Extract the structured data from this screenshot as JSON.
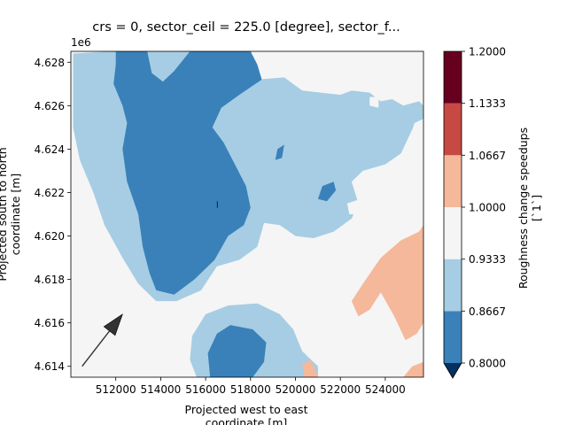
{
  "chart_data": {
    "type": "contourf",
    "title": "crs = 0, sector_ceil = 225.0 [degree], sector_f...",
    "xlabel_lines": [
      "Projected west to east",
      "coordinate [m]"
    ],
    "ylabel_lines": [
      "Projected south to north",
      "coordinate [m]"
    ],
    "y_offset_text": "1e6",
    "xlim": [
      510000,
      525700
    ],
    "ylim": [
      4613500,
      4628500
    ],
    "x_ticks": [
      512000,
      514000,
      516000,
      518000,
      520000,
      522000,
      524000
    ],
    "x_tick_labels": [
      "512000",
      "514000",
      "516000",
      "518000",
      "520000",
      "522000",
      "524000"
    ],
    "y_ticks": [
      4614000,
      4616000,
      4618000,
      4620000,
      4622000,
      4624000,
      4626000,
      4628000
    ],
    "y_tick_labels": [
      "4.614",
      "4.616",
      "4.618",
      "4.620",
      "4.622",
      "4.624",
      "4.626",
      "4.628"
    ],
    "colorbar": {
      "label_lines": [
        "Roughness change speedups",
        "[`1`]"
      ],
      "levels": [
        0.8,
        0.8667,
        0.9333,
        1.0,
        1.0667,
        1.1333,
        1.2
      ],
      "level_labels": [
        "0.8000",
        "0.8667",
        "0.9333",
        "1.0000",
        "1.0667",
        "1.1333",
        "1.2000"
      ],
      "colors": [
        "#3a81ba",
        "#a6cde3",
        "#f5f5f5",
        "#f5b89b",
        "#c64a43",
        "#67001f"
      ],
      "extend_color": "#053061",
      "extend": "min"
    },
    "background_level_color": "#f5f5f5",
    "regions": [
      {
        "name": "light-blue-main",
        "color": "#a6cde3",
        "points": [
          [
            510100,
            4628400
          ],
          [
            511800,
            4628500
          ],
          [
            517200,
            4628500
          ],
          [
            517500,
            4627500
          ],
          [
            518300,
            4627200
          ],
          [
            519500,
            4627300
          ],
          [
            520300,
            4626700
          ],
          [
            522000,
            4626500
          ],
          [
            522500,
            4626700
          ],
          [
            523300,
            4626600
          ],
          [
            523800,
            4626200
          ],
          [
            524300,
            4626300
          ],
          [
            524800,
            4626000
          ],
          [
            525500,
            4626200
          ],
          [
            525700,
            4626000
          ],
          [
            525700,
            4625300
          ],
          [
            525200,
            4624900
          ],
          [
            524700,
            4623800
          ],
          [
            524000,
            4623300
          ],
          [
            523000,
            4623000
          ],
          [
            522500,
            4622500
          ],
          [
            522800,
            4621500
          ],
          [
            522500,
            4620800
          ],
          [
            521700,
            4620200
          ],
          [
            520800,
            4619900
          ],
          [
            520000,
            4620000
          ],
          [
            519300,
            4620500
          ],
          [
            518600,
            4620600
          ],
          [
            518300,
            4619500
          ],
          [
            517500,
            4618900
          ],
          [
            516500,
            4618600
          ],
          [
            515800,
            4617500
          ],
          [
            514700,
            4617000
          ],
          [
            513800,
            4617000
          ],
          [
            513000,
            4617800
          ],
          [
            512300,
            4619000
          ],
          [
            511500,
            4620500
          ],
          [
            511000,
            4622000
          ],
          [
            510400,
            4623500
          ],
          [
            510100,
            4625000
          ]
        ]
      },
      {
        "name": "light-blue-south",
        "color": "#a6cde3",
        "points": [
          [
            515600,
            4613500
          ],
          [
            521000,
            4613500
          ],
          [
            521000,
            4614000
          ],
          [
            520300,
            4614700
          ],
          [
            519900,
            4615700
          ],
          [
            519300,
            4616400
          ],
          [
            518300,
            4616900
          ],
          [
            517000,
            4616800
          ],
          [
            516000,
            4616400
          ],
          [
            515400,
            4615400
          ],
          [
            515300,
            4614300
          ]
        ]
      },
      {
        "name": "dark-blue-main",
        "color": "#3a81ba",
        "points": [
          [
            512000,
            4628500
          ],
          [
            513400,
            4628500
          ],
          [
            513600,
            4627500
          ],
          [
            514100,
            4627100
          ],
          [
            514600,
            4627600
          ],
          [
            515300,
            4628500
          ],
          [
            518000,
            4628500
          ],
          [
            518300,
            4627900
          ],
          [
            518500,
            4627200
          ],
          [
            517500,
            4626500
          ],
          [
            516700,
            4625900
          ],
          [
            516300,
            4625000
          ],
          [
            516800,
            4624300
          ],
          [
            517300,
            4623300
          ],
          [
            517800,
            4622300
          ],
          [
            518000,
            4621300
          ],
          [
            517700,
            4620500
          ],
          [
            517000,
            4620000
          ],
          [
            516400,
            4618900
          ],
          [
            515500,
            4618000
          ],
          [
            514600,
            4617300
          ],
          [
            513800,
            4617500
          ],
          [
            513500,
            4618300
          ],
          [
            513200,
            4619500
          ],
          [
            513000,
            4621000
          ],
          [
            512500,
            4622500
          ],
          [
            512300,
            4624000
          ],
          [
            512500,
            4625200
          ],
          [
            512300,
            4626000
          ],
          [
            511900,
            4627000
          ],
          [
            512000,
            4627900
          ]
        ]
      },
      {
        "name": "dark-blue-south",
        "color": "#3a81ba",
        "points": [
          [
            516200,
            4613500
          ],
          [
            518100,
            4613500
          ],
          [
            518600,
            4614200
          ],
          [
            518700,
            4615100
          ],
          [
            518100,
            4615700
          ],
          [
            517100,
            4615900
          ],
          [
            516500,
            4615500
          ],
          [
            516100,
            4614600
          ]
        ]
      },
      {
        "name": "dark-blue-east",
        "color": "#3a81ba",
        "points": [
          [
            521200,
            4622300
          ],
          [
            521700,
            4622500
          ],
          [
            521800,
            4622100
          ],
          [
            521400,
            4621600
          ],
          [
            521000,
            4621700
          ]
        ]
      },
      {
        "name": "dark-blue-spot",
        "color": "#3a81ba",
        "points": [
          [
            519200,
            4624000
          ],
          [
            519500,
            4624200
          ],
          [
            519400,
            4623600
          ],
          [
            519100,
            4623500
          ]
        ]
      },
      {
        "name": "salmon-east",
        "color": "#f5b89b",
        "points": [
          [
            522500,
            4617000
          ],
          [
            523000,
            4617800
          ],
          [
            523800,
            4619000
          ],
          [
            524700,
            4619800
          ],
          [
            525500,
            4620200
          ],
          [
            525700,
            4620500
          ],
          [
            525700,
            4616000
          ],
          [
            525400,
            4615500
          ],
          [
            524900,
            4615200
          ],
          [
            524400,
            4616300
          ],
          [
            523800,
            4617400
          ],
          [
            523300,
            4616600
          ],
          [
            522800,
            4616300
          ]
        ]
      },
      {
        "name": "salmon-south",
        "color": "#f5b89b",
        "points": [
          [
            520400,
            4613500
          ],
          [
            521000,
            4613500
          ],
          [
            520700,
            4614300
          ],
          [
            520300,
            4614100
          ]
        ]
      },
      {
        "name": "salmon-corner",
        "color": "#f5b89b",
        "points": [
          [
            524800,
            4613500
          ],
          [
            525700,
            4613500
          ],
          [
            525700,
            4614200
          ],
          [
            525200,
            4614000
          ]
        ]
      },
      {
        "name": "white-island-se",
        "color": "#f5f5f5",
        "points": [
          [
            523300,
            4626000
          ],
          [
            523700,
            4625900
          ],
          [
            523700,
            4626400
          ],
          [
            523300,
            4626400
          ]
        ]
      },
      {
        "name": "white-island-ne",
        "color": "#f5f5f5",
        "points": [
          [
            520600,
            4628000
          ],
          [
            522500,
            4628300
          ],
          [
            523500,
            4628200
          ],
          [
            524500,
            4627600
          ],
          [
            525700,
            4627700
          ],
          [
            525700,
            4628500
          ],
          [
            520800,
            4628500
          ]
        ]
      },
      {
        "name": "white-island-east",
        "color": "#f5f5f5",
        "points": [
          [
            525100,
            4624600
          ],
          [
            525700,
            4624700
          ],
          [
            525700,
            4625400
          ],
          [
            525300,
            4625200
          ]
        ]
      },
      {
        "name": "white-island-center",
        "color": "#f5f5f5",
        "points": [
          [
            522300,
            4621500
          ],
          [
            522900,
            4621700
          ],
          [
            522800,
            4621000
          ],
          [
            522400,
            4621000
          ]
        ]
      },
      {
        "name": "dark-line-mark",
        "color": "#053061",
        "points": [
          [
            516500,
            4621300
          ],
          [
            516550,
            4621300
          ],
          [
            516550,
            4621600
          ],
          [
            516500,
            4621600
          ]
        ]
      }
    ],
    "arrow": {
      "from": [
        510500,
        4614000
      ],
      "to": [
        512300,
        4616400
      ],
      "color": "#333333"
    }
  }
}
